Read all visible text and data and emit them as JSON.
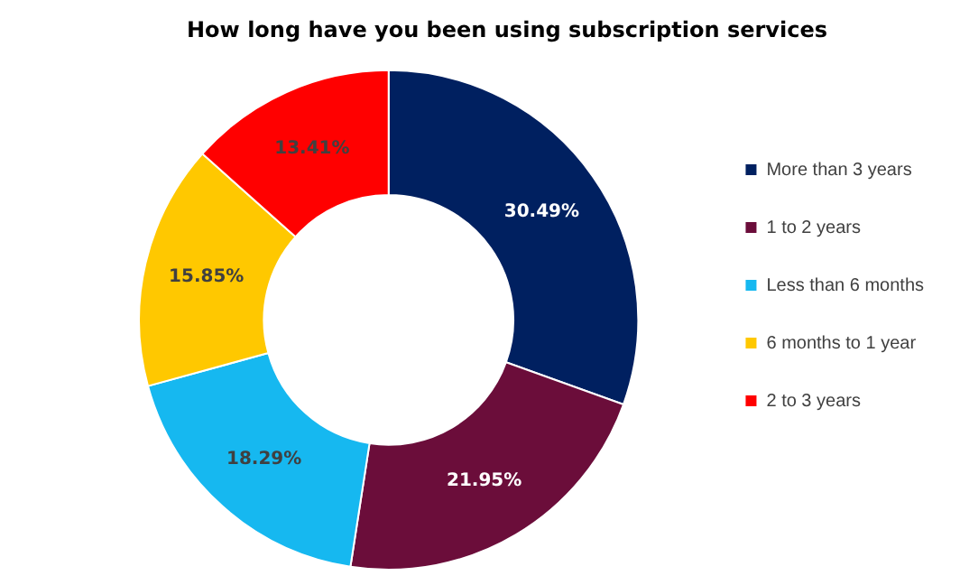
{
  "chart_data": {
    "type": "donut",
    "title": "How long have you been using subscription services",
    "categories": [
      "More than 3 years",
      "1 to 2 years",
      "Less than 6 months",
      "6 months to 1 year",
      "2 to 3 years"
    ],
    "values": [
      30.49,
      21.95,
      18.29,
      15.85,
      13.41
    ],
    "colors": [
      "#002060",
      "#6b0d3a",
      "#16b8f0",
      "#ffc800",
      "#ff0000"
    ],
    "value_labels": [
      "30.49%",
      "21.95%",
      "18.29%",
      "15.85%",
      "13.41%"
    ],
    "legend": "right"
  }
}
